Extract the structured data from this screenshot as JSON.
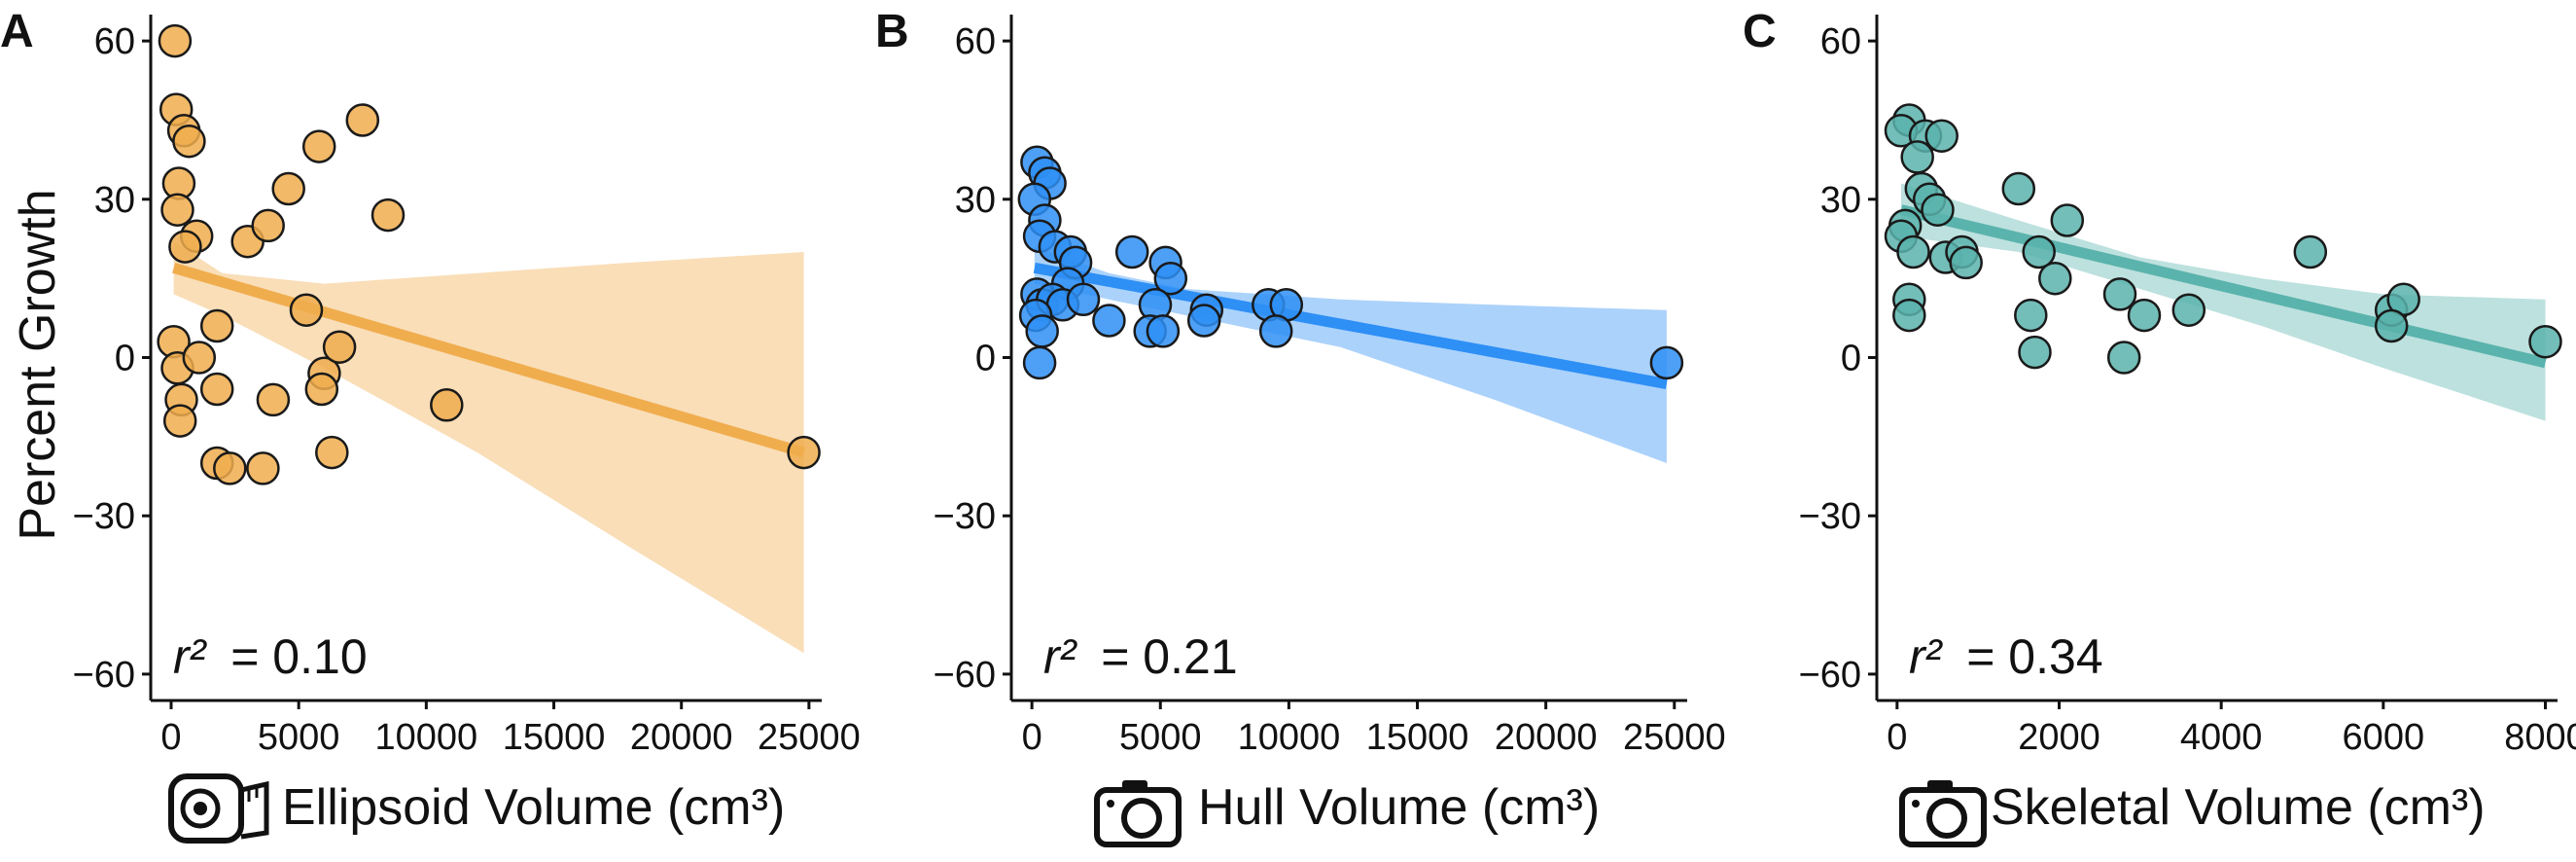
{
  "figure": {
    "ylabel": "Percent Growth"
  },
  "colors": {
    "ellipsoid": "#F0AD4E",
    "hull": "#2E8FF5",
    "skeletal": "#5BB3AD",
    "marker_edge": "#1a1a1a"
  },
  "chart_data": [
    {
      "type": "scatter",
      "panel": "A",
      "xlabel": "Ellipsoid Volume (cm³)",
      "ylabel": "Percent Growth",
      "xlabel_icon": "tape-measure-icon",
      "r2_label": "r²",
      "r2_value": "= 0.10",
      "xlim": [
        -800,
        25500
      ],
      "ylim": [
        -65,
        65
      ],
      "xticks": [
        0,
        5000,
        10000,
        15000,
        20000,
        25000
      ],
      "yticks": [
        60,
        30,
        0,
        -30,
        -60
      ],
      "ytick_labels": [
        "60",
        "30",
        "0",
        "−30",
        "−60"
      ],
      "color": "#F0AD4E",
      "grid": false,
      "points": [
        {
          "x": 150,
          "y": 60
        },
        {
          "x": 200,
          "y": 47
        },
        {
          "x": 500,
          "y": 43
        },
        {
          "x": 700,
          "y": 41
        },
        {
          "x": 300,
          "y": 33
        },
        {
          "x": 250,
          "y": 28
        },
        {
          "x": 1000,
          "y": 23
        },
        {
          "x": 550,
          "y": 21
        },
        {
          "x": 100,
          "y": 3
        },
        {
          "x": 250,
          "y": -2
        },
        {
          "x": 1100,
          "y": 0
        },
        {
          "x": 400,
          "y": -8
        },
        {
          "x": 350,
          "y": -12
        },
        {
          "x": 1800,
          "y": -6
        },
        {
          "x": 1800,
          "y": -20
        },
        {
          "x": 2300,
          "y": -21
        },
        {
          "x": 3600,
          "y": -21
        },
        {
          "x": 4000,
          "y": -8
        },
        {
          "x": 3000,
          "y": 22
        },
        {
          "x": 3800,
          "y": 25
        },
        {
          "x": 4600,
          "y": 32
        },
        {
          "x": 1800,
          "y": 6
        },
        {
          "x": 5300,
          "y": 9
        },
        {
          "x": 5800,
          "y": 40
        },
        {
          "x": 7500,
          "y": 45
        },
        {
          "x": 8500,
          "y": 27
        },
        {
          "x": 6000,
          "y": -3
        },
        {
          "x": 5900,
          "y": -6
        },
        {
          "x": 6600,
          "y": 2
        },
        {
          "x": 6300,
          "y": -18
        },
        {
          "x": 10800,
          "y": -9
        },
        {
          "x": 24800,
          "y": -18
        }
      ],
      "fit": {
        "x": [
          100,
          24800
        ],
        "y": [
          17,
          -18
        ]
      },
      "band": {
        "x": [
          100,
          2000,
          6000,
          12000,
          18000,
          24800
        ],
        "lower": [
          12,
          8,
          -2,
          -18,
          -36,
          -56
        ],
        "upper": [
          22,
          16,
          14,
          16,
          18,
          20
        ]
      }
    },
    {
      "type": "scatter",
      "panel": "B",
      "xlabel": "Hull Volume (cm³)",
      "ylabel": "",
      "xlabel_icon": "camera-icon",
      "r2_label": "r²",
      "r2_value": "= 0.21",
      "xlim": [
        -800,
        25500
      ],
      "ylim": [
        -65,
        65
      ],
      "xticks": [
        0,
        5000,
        10000,
        15000,
        20000,
        25000
      ],
      "yticks": [
        60,
        30,
        0,
        -30,
        -60
      ],
      "ytick_labels": [
        "60",
        "30",
        "0",
        "−30",
        "−60"
      ],
      "color": "#2E8FF5",
      "grid": false,
      "points": [
        {
          "x": 200,
          "y": 37
        },
        {
          "x": 500,
          "y": 35
        },
        {
          "x": 700,
          "y": 33
        },
        {
          "x": 100,
          "y": 30
        },
        {
          "x": 500,
          "y": 26
        },
        {
          "x": 300,
          "y": 23
        },
        {
          "x": 900,
          "y": 21
        },
        {
          "x": 1500,
          "y": 20
        },
        {
          "x": 1700,
          "y": 18
        },
        {
          "x": 1400,
          "y": 14
        },
        {
          "x": 200,
          "y": 12
        },
        {
          "x": 400,
          "y": 10
        },
        {
          "x": 800,
          "y": 11
        },
        {
          "x": 1200,
          "y": 10
        },
        {
          "x": 2000,
          "y": 11
        },
        {
          "x": 150,
          "y": 8
        },
        {
          "x": 400,
          "y": 5
        },
        {
          "x": 300,
          "y": -1
        },
        {
          "x": 3000,
          "y": 7
        },
        {
          "x": 3900,
          "y": 20
        },
        {
          "x": 5200,
          "y": 18
        },
        {
          "x": 5400,
          "y": 15
        },
        {
          "x": 4800,
          "y": 10
        },
        {
          "x": 4600,
          "y": 5
        },
        {
          "x": 5100,
          "y": 5
        },
        {
          "x": 6800,
          "y": 9
        },
        {
          "x": 6700,
          "y": 7
        },
        {
          "x": 9200,
          "y": 10
        },
        {
          "x": 9900,
          "y": 10
        },
        {
          "x": 9500,
          "y": 5
        },
        {
          "x": 24700,
          "y": -1
        }
      ],
      "fit": {
        "x": [
          100,
          24700
        ],
        "y": [
          17,
          -5
        ]
      },
      "band": {
        "x": [
          100,
          3000,
          6000,
          12000,
          18000,
          24700
        ],
        "lower": [
          14,
          11,
          8,
          2,
          -8,
          -20
        ],
        "upper": [
          21,
          16,
          13,
          11,
          10,
          9
        ]
      }
    },
    {
      "type": "scatter",
      "panel": "C",
      "xlabel": "Skeletal Volume (cm³)",
      "ylabel": "",
      "xlabel_icon": "camera-icon",
      "r2_label": "r²",
      "r2_value": "= 0.34",
      "xlim": [
        -250,
        8150
      ],
      "ylim": [
        -65,
        65
      ],
      "xticks": [
        0,
        2000,
        4000,
        6000,
        8000
      ],
      "yticks": [
        60,
        30,
        0,
        -30,
        -60
      ],
      "ytick_labels": [
        "60",
        "30",
        "0",
        "−30",
        "−60"
      ],
      "color": "#5BB3AD",
      "grid": false,
      "points": [
        {
          "x": 150,
          "y": 45
        },
        {
          "x": 50,
          "y": 43
        },
        {
          "x": 350,
          "y": 42
        },
        {
          "x": 550,
          "y": 42
        },
        {
          "x": 250,
          "y": 38
        },
        {
          "x": 300,
          "y": 32
        },
        {
          "x": 400,
          "y": 30
        },
        {
          "x": 500,
          "y": 28
        },
        {
          "x": 100,
          "y": 25
        },
        {
          "x": 50,
          "y": 23
        },
        {
          "x": 200,
          "y": 20
        },
        {
          "x": 600,
          "y": 19
        },
        {
          "x": 800,
          "y": 20
        },
        {
          "x": 850,
          "y": 18
        },
        {
          "x": 150,
          "y": 11
        },
        {
          "x": 150,
          "y": 8
        },
        {
          "x": 1500,
          "y": 32
        },
        {
          "x": 2100,
          "y": 26
        },
        {
          "x": 1750,
          "y": 20
        },
        {
          "x": 1950,
          "y": 15
        },
        {
          "x": 1650,
          "y": 8
        },
        {
          "x": 1700,
          "y": 1
        },
        {
          "x": 2750,
          "y": 12
        },
        {
          "x": 3050,
          "y": 8
        },
        {
          "x": 2800,
          "y": 0
        },
        {
          "x": 3600,
          "y": 9
        },
        {
          "x": 5100,
          "y": 20
        },
        {
          "x": 6100,
          "y": 9
        },
        {
          "x": 6250,
          "y": 11
        },
        {
          "x": 6100,
          "y": 6
        },
        {
          "x": 8000,
          "y": 3
        }
      ],
      "fit": {
        "x": [
          50,
          8000
        ],
        "y": [
          28,
          -1
        ]
      },
      "band": {
        "x": [
          50,
          1500,
          3000,
          4500,
          6000,
          8000
        ],
        "lower": [
          23,
          20,
          13,
          6,
          -2,
          -12
        ],
        "upper": [
          33,
          26,
          19,
          15,
          12,
          11
        ]
      }
    }
  ]
}
